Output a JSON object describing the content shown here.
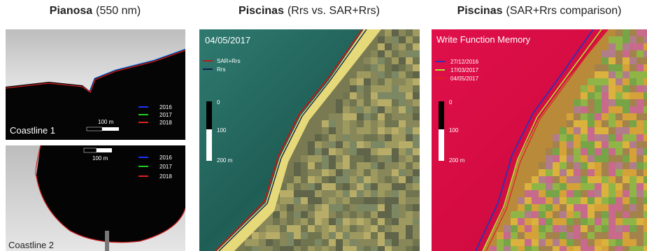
{
  "panels": [
    {
      "title_bold": "Pianosa",
      "title_rest": "(550 nm)",
      "insets": [
        {
          "label": "Coastline 1",
          "scale": "100 m",
          "legend": [
            "2016",
            "2017",
            "2018"
          ]
        },
        {
          "label": "Coastline 2",
          "scale": "100 m",
          "legend": [
            "2016",
            "2017",
            "2018"
          ]
        }
      ]
    },
    {
      "title_bold": "Piscinas",
      "title_rest": "(Rrs vs. SAR+Rrs)",
      "date": "04/05/2017",
      "legend": [
        "SAR+Rrs",
        "Rrs"
      ],
      "scale": [
        "0",
        "100",
        "200 m"
      ]
    },
    {
      "title_bold": "Piscinas",
      "title_rest": "(SAR+Rrs comparison)",
      "heading": "Write Function Memory",
      "legend": [
        "27/12/2016",
        "17/03/2017",
        "04/05/2017"
      ],
      "scale": [
        "0",
        "100",
        "200 m"
      ]
    }
  ]
}
